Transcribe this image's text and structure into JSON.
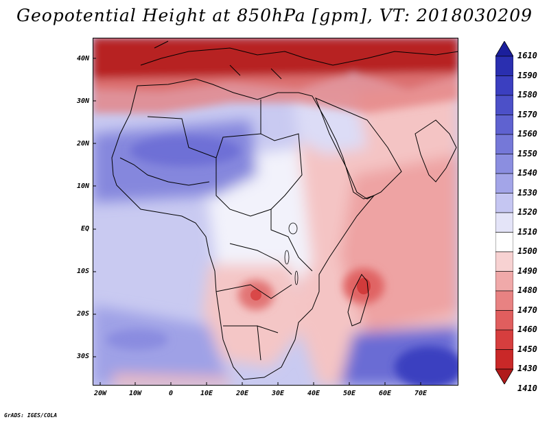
{
  "title": "Geopotential Height at 850hPa [gpm], VT: 2018030209",
  "y_axis": [
    "40N",
    "30N",
    "20N",
    "10N",
    "EQ",
    "10S",
    "20S",
    "30S"
  ],
  "x_axis": [
    "20W",
    "10W",
    "0",
    "10E",
    "20E",
    "30E",
    "40E",
    "50E",
    "60E",
    "70E"
  ],
  "colorbar": {
    "labels": [
      "1610",
      "1590",
      "1580",
      "1570",
      "1560",
      "1550",
      "1540",
      "1530",
      "1520",
      "1510",
      "1500",
      "1490",
      "1480",
      "1470",
      "1460",
      "1450",
      "1430",
      "1410"
    ],
    "colors": [
      "#1b1f9c",
      "#2a2fb0",
      "#3b3fc0",
      "#4c50c8",
      "#5f62d0",
      "#7578d8",
      "#8b8ee0",
      "#a3a5e8",
      "#c5c6f2",
      "#e4e4f8",
      "#ffffff",
      "#f7d2d2",
      "#f0a9a9",
      "#e88282",
      "#e05e5e",
      "#d63e3e",
      "#c92828",
      "#b01a1a"
    ]
  },
  "credit": "GrADS: IGES/COLA"
}
